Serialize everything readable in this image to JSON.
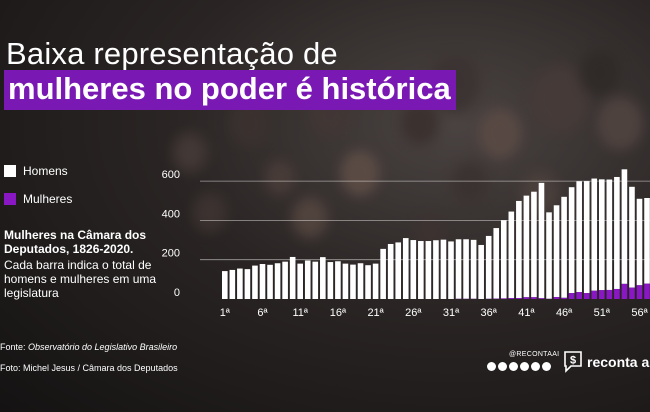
{
  "title_line1": "Baixa representação de",
  "title_line2": "mulheres no poder é histórica",
  "legend": [
    {
      "label": "Homens",
      "color": "#ffffff"
    },
    {
      "label": "Mulheres",
      "color": "#8a17c4"
    }
  ],
  "note_title": "Mulheres na Câmara dos Deputados, 1826-2020.",
  "note_body": "Cada barra indica o total de homens e mulheres em uma legislatura",
  "source_label": "Fonte: ",
  "source_name": "Observatório do Legislativo Brasileiro",
  "photo_credit": "Foto: Michel Jesus / Câmara dos Deputados",
  "handle": "@RECONTAAI",
  "social_icons": [
    "instagram-icon",
    "facebook-icon",
    "youtube-icon",
    "tiktok-icon",
    "linkedin-icon",
    "email-icon"
  ],
  "logo_text": "reconta aí",
  "logo_icon": "dollar-speech-bubble-icon",
  "chart_data": {
    "type": "bar",
    "stacked": true,
    "x": [
      1,
      2,
      3,
      4,
      5,
      6,
      7,
      8,
      9,
      10,
      11,
      12,
      13,
      14,
      15,
      16,
      17,
      18,
      19,
      20,
      21,
      22,
      23,
      24,
      25,
      26,
      27,
      28,
      29,
      30,
      31,
      32,
      33,
      34,
      35,
      36,
      37,
      38,
      39,
      40,
      41,
      42,
      43,
      44,
      45,
      46,
      47,
      48,
      49,
      50,
      51,
      52,
      53,
      54,
      55,
      56,
      57
    ],
    "x_tick_labels": [
      "1ª",
      "6ª",
      "11ª",
      "16ª",
      "21ª",
      "26ª",
      "31ª",
      "36ª",
      "41ª",
      "46ª",
      "51ª",
      "56ª"
    ],
    "x_tick_positions": [
      1,
      6,
      11,
      16,
      21,
      26,
      31,
      36,
      41,
      46,
      51,
      56
    ],
    "series": [
      {
        "name": "Homens",
        "color": "#ffffff",
        "values": [
          142,
          148,
          155,
          152,
          170,
          178,
          174,
          182,
          190,
          214,
          180,
          196,
          190,
          213,
          188,
          192,
          180,
          175,
          182,
          172,
          180,
          255,
          280,
          288,
          310,
          300,
          295,
          295,
          299,
          302,
          293,
          303,
          303,
          300,
          275,
          320,
          359,
          398,
          440,
          494,
          517,
          537,
          587,
          440,
          467,
          514,
          539,
          564,
          570,
          571,
          564,
          562,
          570,
          583,
          513,
          440,
          436
        ]
      },
      {
        "name": "Mulheres",
        "color": "#8a17c4",
        "values": [
          0,
          0,
          0,
          0,
          0,
          0,
          0,
          0,
          0,
          0,
          0,
          0,
          0,
          0,
          0,
          0,
          0,
          0,
          0,
          0,
          0,
          0,
          0,
          0,
          0,
          0,
          0,
          0,
          0,
          0,
          0,
          1,
          1,
          1,
          0,
          1,
          2,
          3,
          5,
          5,
          9,
          9,
          4,
          1,
          10,
          6,
          30,
          35,
          30,
          42,
          45,
          46,
          51,
          77,
          58,
          70,
          78
        ]
      }
    ],
    "y_ticks": [
      0,
      200,
      400,
      600
    ],
    "ylim": [
      0,
      720
    ],
    "grid": true,
    "legend_position": "left"
  }
}
